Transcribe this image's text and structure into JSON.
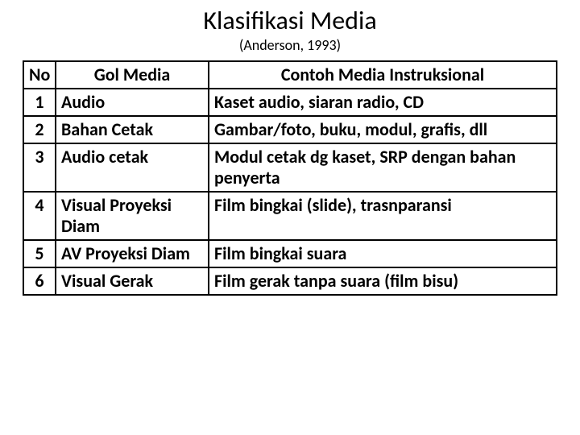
{
  "title": "Klasifikasi Media",
  "subtitle": "(Anderson, 1993)",
  "table": {
    "type": "table",
    "columns": [
      {
        "label": "No",
        "width": 40,
        "align": "center"
      },
      {
        "label": "Gol Media",
        "width": 190,
        "align": "left"
      },
      {
        "label": "Contoh Media Instruksional",
        "width": null,
        "align": "left"
      }
    ],
    "rows": [
      {
        "no": "1",
        "gol": "Audio",
        "contoh": "Kaset audio, siaran radio, CD"
      },
      {
        "no": "2",
        "gol": "Bahan Cetak",
        "contoh": "Gambar/foto, buku, modul, grafis, dll"
      },
      {
        "no": "3",
        "gol": "Audio cetak",
        "contoh": "Modul cetak dg kaset,  SRP dengan bahan penyerta"
      },
      {
        "no": "4",
        "gol": "Visual Proyeksi Diam",
        "contoh": "Film bingkai (slide), trasnparansi"
      },
      {
        "no": "5",
        "gol": "AV Proyeksi Diam",
        "contoh": "Film bingkai suara"
      },
      {
        "no": "6",
        "gol": "Visual Gerak",
        "contoh": "Film gerak tanpa suara (film bisu)"
      }
    ],
    "border_color": "#000000",
    "background_color": "#ffffff",
    "header_fontsize": 22,
    "cell_fontsize": 22,
    "font_weight": 700
  },
  "title_fontsize": 32,
  "subtitle_fontsize": 18,
  "text_color": "#000000",
  "background_color": "#ffffff"
}
